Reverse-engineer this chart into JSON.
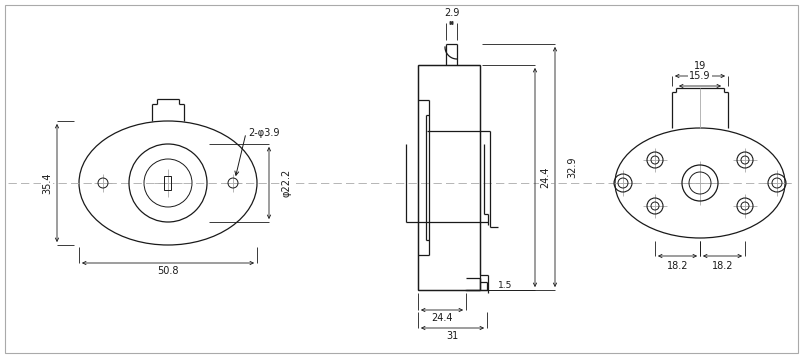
{
  "bg_color": "#ffffff",
  "line_color": "#1a1a1a",
  "dim_color": "#1a1a1a",
  "centerline_color": "#aaaaaa",
  "font_size": 7.0,
  "lw_main": 0.9,
  "lw_dim": 0.6,
  "annotations": {
    "dim_508": "50.8",
    "dim_354": "35.4",
    "dim_phi222": "φ22.2",
    "dim_phi39": "2-φ3.9",
    "dim_29": "2.9",
    "dim_244a": "24.4",
    "dim_244b": "24.4",
    "dim_329": "32.9",
    "dim_31": "31",
    "dim_15": "1.5",
    "dim_19": "19",
    "dim_159": "15.9",
    "dim_182a": "18.2",
    "dim_182b": "18.2"
  }
}
